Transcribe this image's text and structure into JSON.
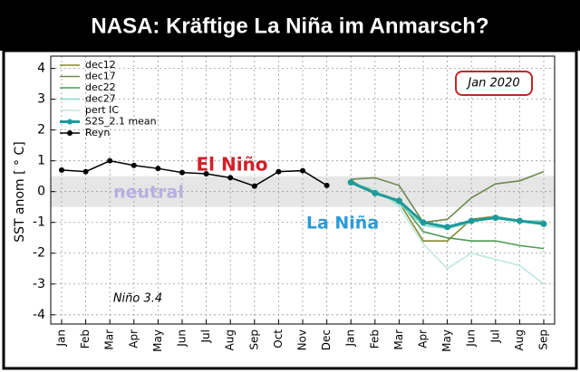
{
  "chart_data": {
    "type": "line",
    "title": "NASA: Kräftige La Niña im Anmarsch?",
    "ylabel": "SST anom [ ° C]",
    "categories": [
      "Jan",
      "Feb",
      "Mar",
      "Apr",
      "May",
      "Jun",
      "Jul",
      "Aug",
      "Sep",
      "Oct",
      "Nov",
      "Dec",
      "Jan",
      "Feb",
      "Mar",
      "Apr",
      "May",
      "Jun",
      "Jul",
      "Aug",
      "Sep"
    ],
    "series": [
      {
        "name": "dec12",
        "color": "#8a8a2e",
        "values": [
          null,
          null,
          null,
          null,
          null,
          null,
          null,
          null,
          null,
          null,
          null,
          null,
          0.35,
          0.0,
          -0.35,
          -1.6,
          -1.6,
          -0.9,
          -0.8,
          -0.95,
          -1.0
        ]
      },
      {
        "name": "dec17",
        "color": "#6e8a4e",
        "values": [
          null,
          null,
          null,
          null,
          null,
          null,
          null,
          null,
          null,
          null,
          null,
          null,
          0.4,
          0.45,
          0.2,
          -1.0,
          -0.9,
          -0.2,
          0.25,
          0.35,
          0.65
        ]
      },
      {
        "name": "dec22",
        "color": "#4c9a52",
        "values": [
          null,
          null,
          null,
          null,
          null,
          null,
          null,
          null,
          null,
          null,
          null,
          null,
          0.3,
          0.0,
          -0.3,
          -1.3,
          -1.5,
          -1.6,
          -1.6,
          -1.75,
          -1.85
        ]
      },
      {
        "name": "dec27",
        "color": "#7fd8c6",
        "values": [
          null,
          null,
          null,
          null,
          null,
          null,
          null,
          null,
          null,
          null,
          null,
          null,
          0.3,
          0.0,
          -0.4,
          -1.1,
          -1.2,
          -1.0,
          -0.8,
          -0.95,
          -0.95
        ]
      },
      {
        "name": "pert IC",
        "color": "#bde9e2",
        "values": [
          null,
          null,
          null,
          null,
          null,
          null,
          null,
          null,
          null,
          null,
          null,
          null,
          0.3,
          0.1,
          -0.5,
          -1.7,
          -2.5,
          -2.0,
          -2.2,
          -2.4,
          -3.0
        ]
      },
      {
        "name": "S2S_2.1 mean",
        "color": "#1e9a9a",
        "values": [
          null,
          null,
          null,
          null,
          null,
          null,
          null,
          null,
          null,
          null,
          null,
          null,
          0.3,
          -0.05,
          -0.3,
          -1.0,
          -1.15,
          -0.95,
          -0.85,
          -0.95,
          -1.05
        ]
      },
      {
        "name": "Reyn",
        "color": "#000000",
        "values": [
          0.7,
          0.65,
          1.0,
          0.85,
          0.75,
          0.62,
          0.58,
          0.45,
          0.18,
          0.65,
          0.68,
          0.2,
          null,
          null,
          null,
          null,
          null,
          null,
          null,
          null,
          null
        ]
      }
    ],
    "ylim": [
      -4.3,
      4.4
    ],
    "yticks": [
      -4,
      -3,
      -2,
      -1,
      0,
      1,
      2,
      3,
      4
    ],
    "shaded_band": [
      -0.5,
      0.5
    ],
    "grid": true,
    "legend": "upper left",
    "annotations": [
      {
        "text": "El Niño",
        "color": "#d0202a"
      },
      {
        "text": "neutral",
        "color": "#b8b0e0"
      },
      {
        "text": "La Niña",
        "color": "#2a9ad8"
      },
      {
        "text": "Niño 3.4",
        "color": "#000000"
      },
      {
        "text": "Jan 2020",
        "color": "#000000"
      }
    ]
  }
}
